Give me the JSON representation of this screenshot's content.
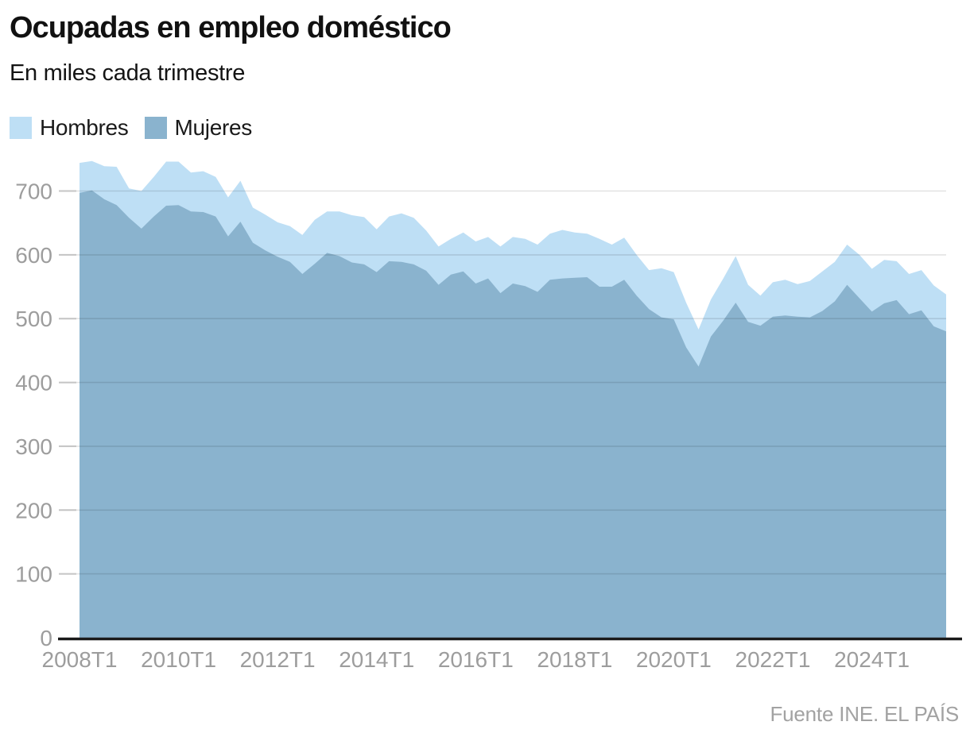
{
  "header": {
    "title": "Ocupadas en empleo doméstico",
    "subtitle": "En miles cada trimestre"
  },
  "legend": {
    "items": [
      {
        "label": "Hombres",
        "color": "#bedff5"
      },
      {
        "label": "Mujeres",
        "color": "#8ab3ce"
      }
    ]
  },
  "source": "Fuente INE. EL PAÍS",
  "colors": {
    "hombres": "#bedff5",
    "mujeres": "#8ab3ce",
    "axis_text": "#9d9d9d",
    "grid_tick": "#c4c4c4",
    "axis_line": "#1a1a1a",
    "title_text": "#111111",
    "source_text": "#a2a2a2"
  },
  "chart_data": {
    "type": "area",
    "stacked": true,
    "title": "Ocupadas en empleo doméstico",
    "subtitle": "En miles cada trimestre",
    "xlabel": "",
    "ylabel": "",
    "ylim": [
      0,
      750
    ],
    "grid": true,
    "legend_position": "top-left",
    "categories": [
      "2008T1",
      "2008T2",
      "2008T3",
      "2008T4",
      "2009T1",
      "2009T2",
      "2009T3",
      "2009T4",
      "2010T1",
      "2010T2",
      "2010T3",
      "2010T4",
      "2011T1",
      "2011T2",
      "2011T3",
      "2011T4",
      "2012T1",
      "2012T2",
      "2012T3",
      "2012T4",
      "2013T1",
      "2013T2",
      "2013T3",
      "2013T4",
      "2014T1",
      "2014T2",
      "2014T3",
      "2014T4",
      "2015T1",
      "2015T2",
      "2015T3",
      "2015T4",
      "2016T1",
      "2016T2",
      "2016T3",
      "2016T4",
      "2017T1",
      "2017T2",
      "2017T3",
      "2017T4",
      "2018T1",
      "2018T2",
      "2018T3",
      "2018T4",
      "2019T1",
      "2019T2",
      "2019T3",
      "2019T4",
      "2020T1",
      "2020T2",
      "2020T3",
      "2020T4",
      "2021T1",
      "2021T2",
      "2021T3",
      "2021T4",
      "2022T1",
      "2022T2",
      "2022T3",
      "2022T4",
      "2023T1",
      "2023T2",
      "2023T3",
      "2023T4",
      "2024T1",
      "2024T2",
      "2024T3",
      "2024T4",
      "2025T1",
      "2025T2",
      "2025T3"
    ],
    "series": [
      {
        "name": "Mujeres",
        "color": "#8ab3ce",
        "values": [
          697,
          701,
          687,
          678,
          658,
          641,
          660,
          677,
          678,
          668,
          667,
          660,
          629,
          652,
          619,
          607,
          597,
          589,
          570,
          586,
          603,
          598,
          588,
          585,
          573,
          590,
          589,
          585,
          575,
          553,
          569,
          574,
          555,
          563,
          540,
          555,
          551,
          542,
          561,
          563,
          564,
          565,
          550,
          550,
          561,
          536,
          515,
          502,
          499,
          455,
          425,
          472,
          497,
          525,
          495,
          489,
          503,
          505,
          503,
          502,
          512,
          527,
          553,
          532,
          511,
          524,
          529,
          507,
          513,
          488,
          480
        ]
      },
      {
        "name": "Hombres",
        "color": "#bedff5",
        "values": [
          47,
          46,
          52,
          60,
          46,
          59,
          62,
          69,
          68,
          61,
          64,
          62,
          61,
          64,
          55,
          56,
          54,
          56,
          61,
          69,
          65,
          70,
          74,
          74,
          67,
          70,
          76,
          73,
          63,
          60,
          56,
          61,
          66,
          65,
          73,
          73,
          74,
          74,
          72,
          76,
          71,
          68,
          75,
          66,
          66,
          64,
          61,
          77,
          74,
          70,
          58,
          58,
          66,
          73,
          58,
          47,
          54,
          56,
          51,
          57,
          62,
          62,
          63,
          68,
          67,
          68,
          61,
          63,
          63,
          64,
          58
        ]
      }
    ],
    "y_ticks": [
      0,
      100,
      200,
      300,
      400,
      500,
      600,
      700
    ],
    "x_tick_indices": [
      0,
      8,
      16,
      24,
      32,
      40,
      48,
      56,
      64
    ],
    "x_tick_labels": [
      "2008T1",
      "2010T1",
      "2012T1",
      "2014T1",
      "2016T1",
      "2018T1",
      "2020T1",
      "2022T1",
      "2024T1"
    ]
  }
}
